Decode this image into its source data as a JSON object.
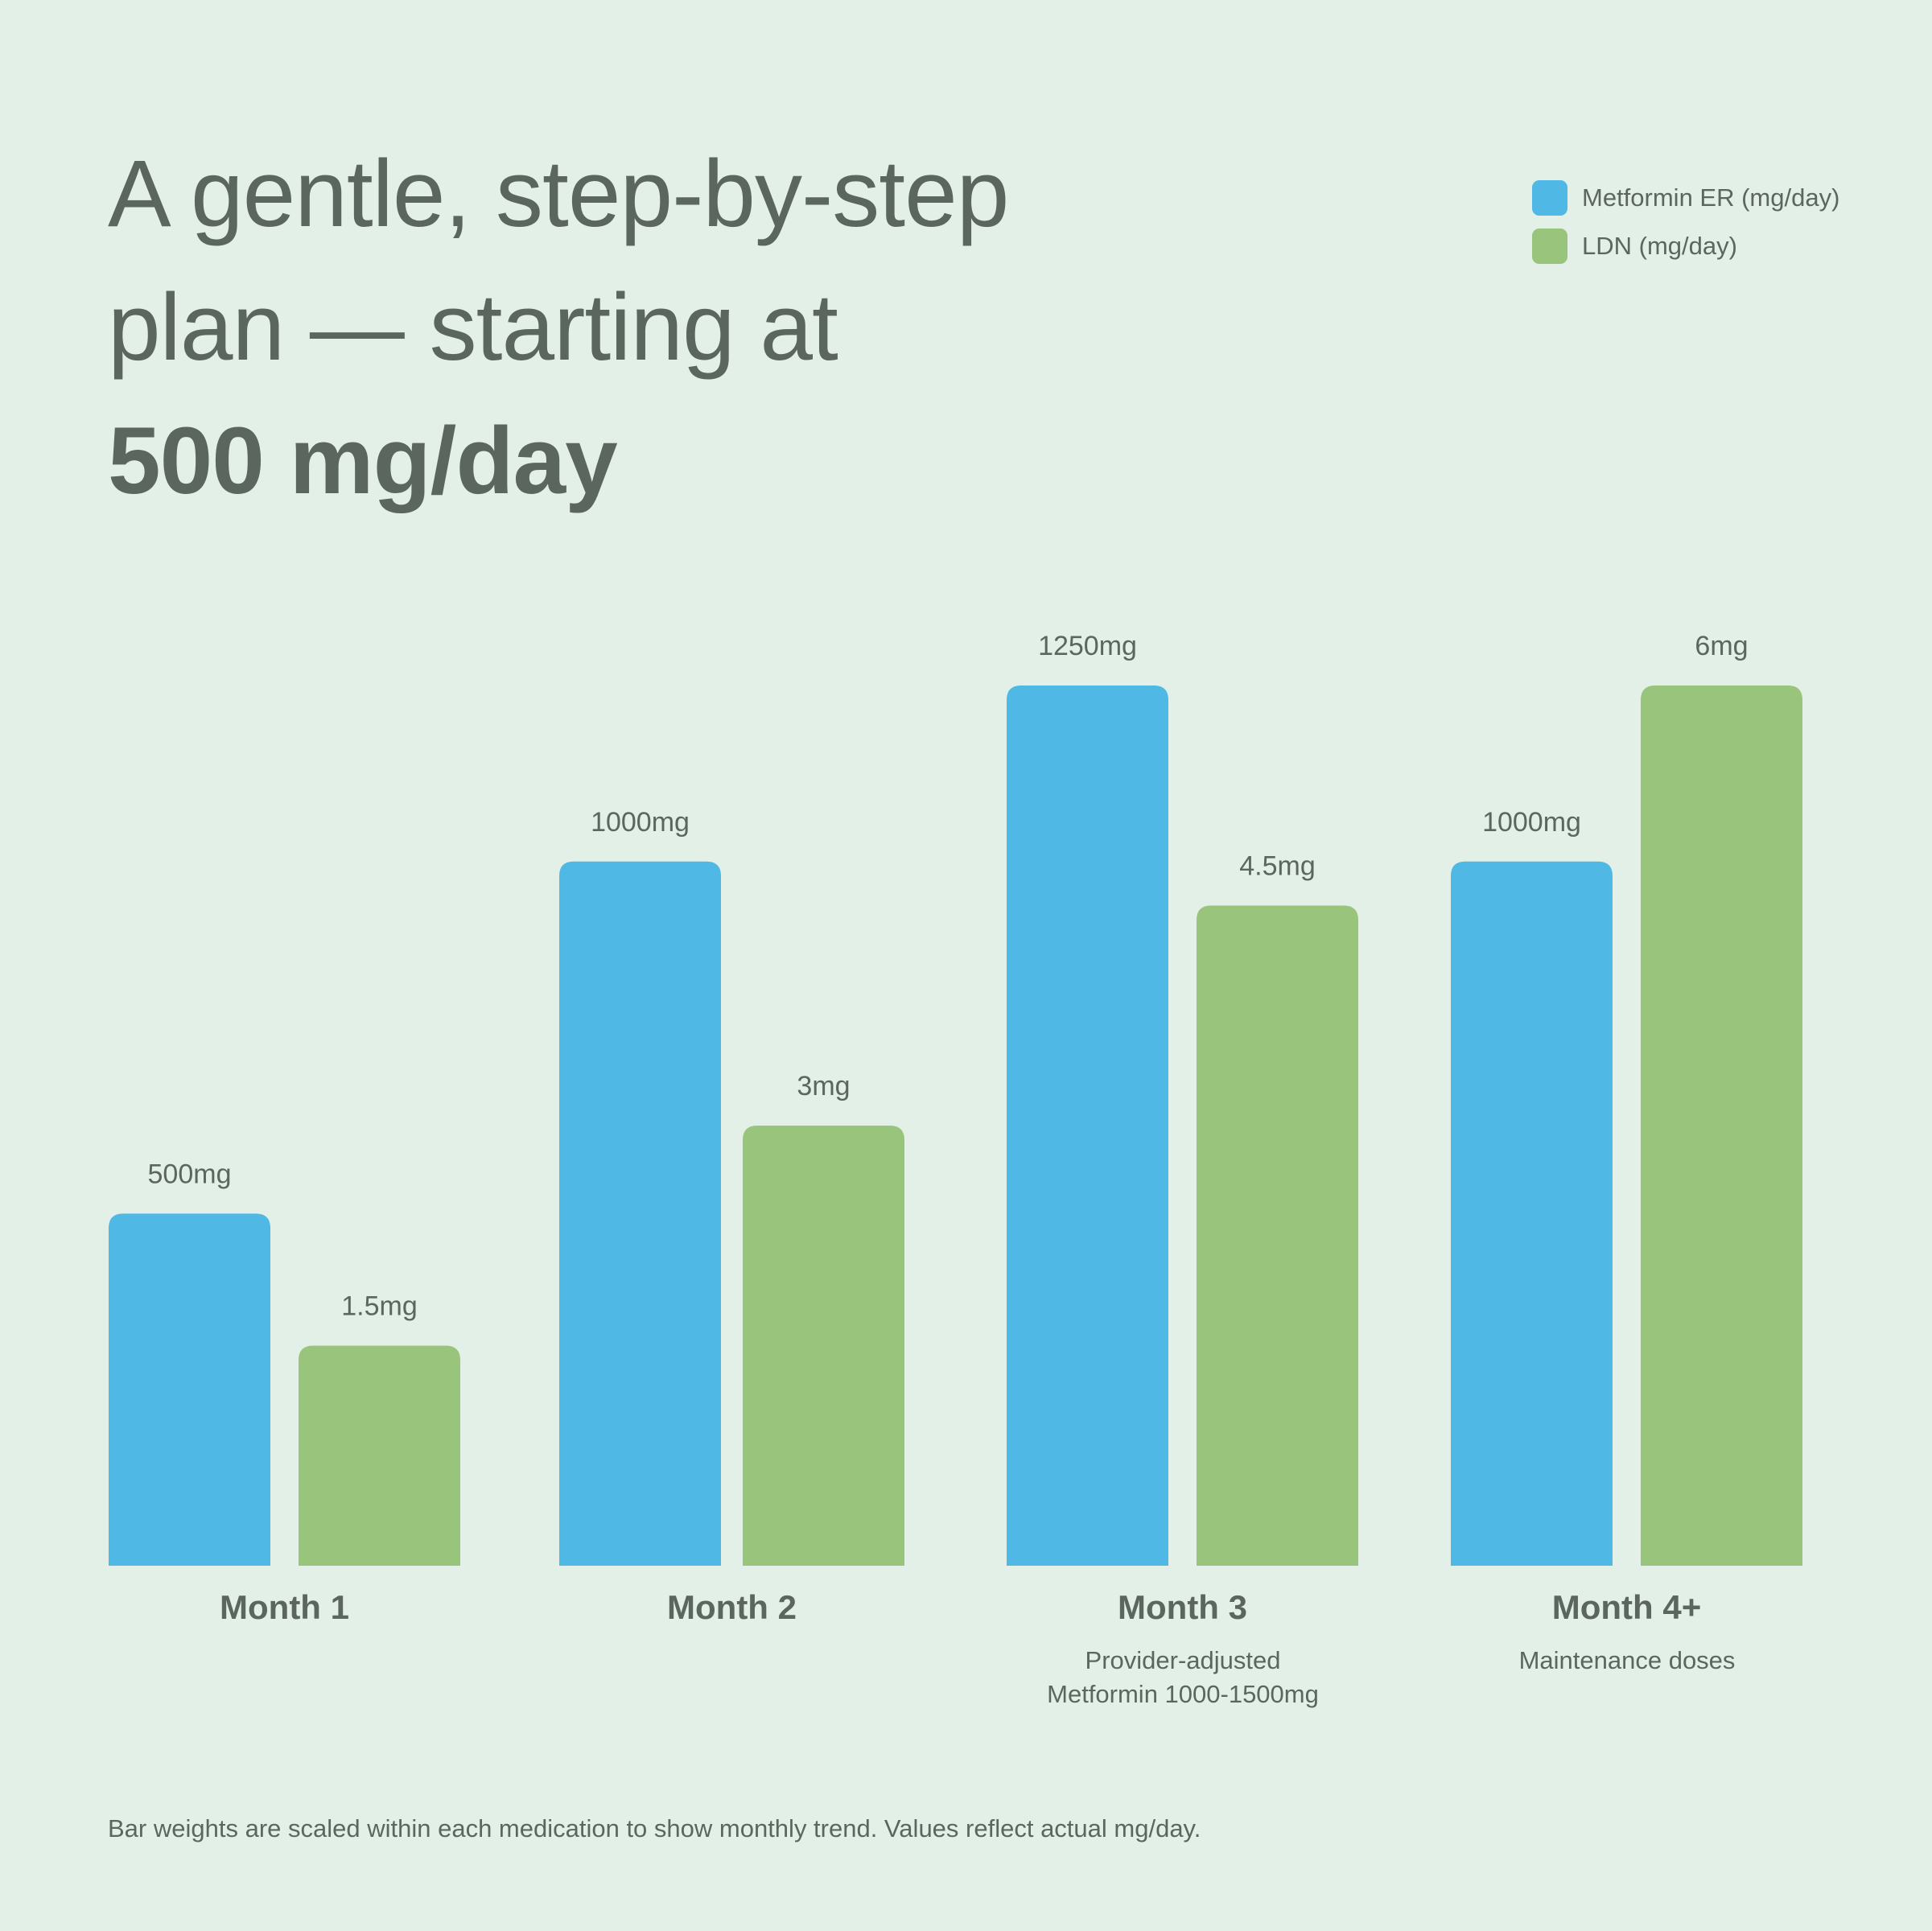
{
  "title": {
    "line1": "A gentle, step-by-step",
    "line2": "plan — starting at",
    "line3": "500 mg/day"
  },
  "legend": [
    {
      "label": "Metformin ER (mg/day)",
      "color": "#4fb8e5"
    },
    {
      "label": "LDN (mg/day)",
      "color": "#98c47b"
    }
  ],
  "chart_data": {
    "type": "bar",
    "categories": [
      "Month 1",
      "Month 2",
      "Month 3",
      "Month 4+"
    ],
    "series": [
      {
        "name": "Metformin ER (mg/day)",
        "color": "#4fb8e5",
        "values": [
          500,
          1000,
          1250,
          1000
        ],
        "labels": [
          "500mg",
          "1000mg",
          "1250mg",
          "1000mg"
        ]
      },
      {
        "name": "LDN (mg/day)",
        "color": "#98c47b",
        "values": [
          1.5,
          3,
          4.5,
          6
        ],
        "labels": [
          "1.5mg",
          "3mg",
          "4.5mg",
          "6mg"
        ]
      }
    ],
    "category_notes": [
      [],
      [],
      [
        "Provider-adjusted",
        "Metformin 1000-1500mg"
      ],
      [
        "Maintenance doses"
      ]
    ],
    "footnote": "Bar weights are scaled within each medication to show monthly trend. Values reflect actual mg/day."
  }
}
